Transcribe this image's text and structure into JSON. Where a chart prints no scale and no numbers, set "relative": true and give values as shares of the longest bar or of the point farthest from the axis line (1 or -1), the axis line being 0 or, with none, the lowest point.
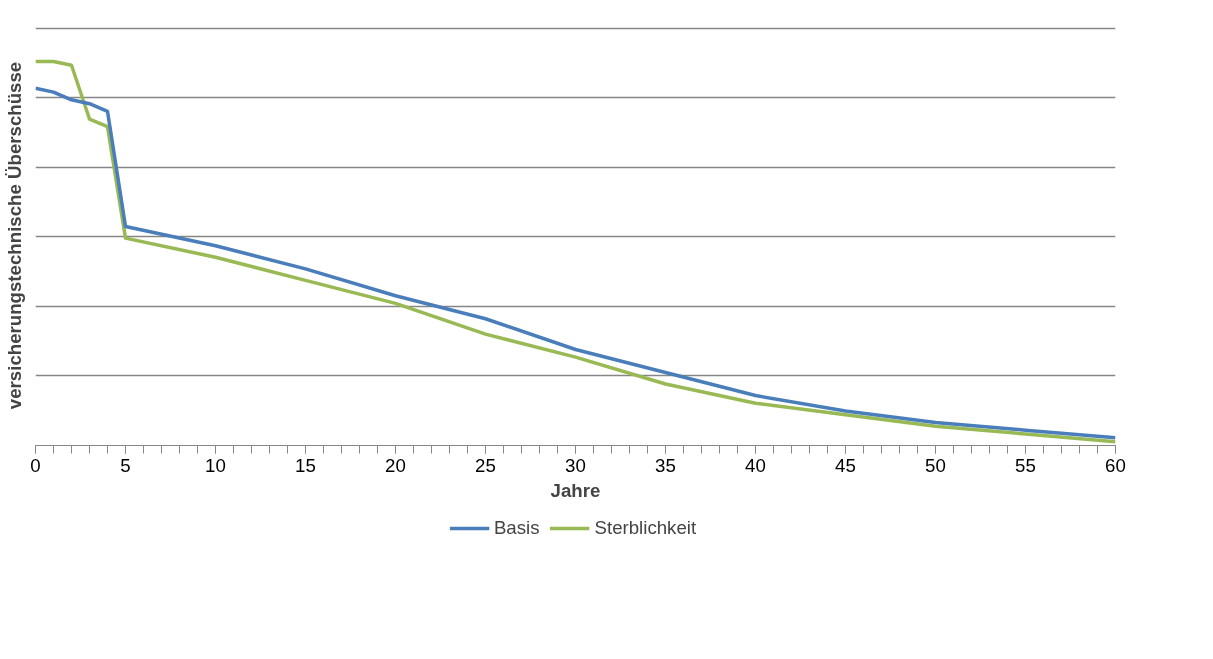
{
  "chart_data": {
    "type": "line",
    "relative": true,
    "xlabel": "Jahre",
    "ylabel": "versicherungstechnische Überschüsse",
    "x": [
      0,
      1,
      2,
      3,
      4,
      5,
      10,
      15,
      20,
      25,
      30,
      35,
      40,
      45,
      50,
      55,
      60
    ],
    "xlim": [
      0,
      60
    ],
    "xticks": [
      0,
      5,
      10,
      15,
      20,
      25,
      30,
      35,
      40,
      45,
      50,
      55,
      60
    ],
    "grid": "y",
    "legend": "bottom",
    "line_style": "solid",
    "marker": "none",
    "series": [
      {
        "name": "Basis",
        "color": "#4a7ebb",
        "values": [
          0.93,
          0.92,
          0.9,
          0.89,
          0.87,
          0.57,
          0.52,
          0.46,
          0.39,
          0.33,
          0.25,
          0.19,
          0.13,
          0.09,
          0.06,
          0.04,
          0.02
        ]
      },
      {
        "name": "Sterblichkeit",
        "color": "#98b954",
        "values": [
          1.0,
          1.0,
          0.99,
          0.85,
          0.83,
          0.54,
          0.49,
          0.43,
          0.37,
          0.29,
          0.23,
          0.16,
          0.11,
          0.08,
          0.05,
          0.03,
          0.01
        ]
      }
    ]
  }
}
